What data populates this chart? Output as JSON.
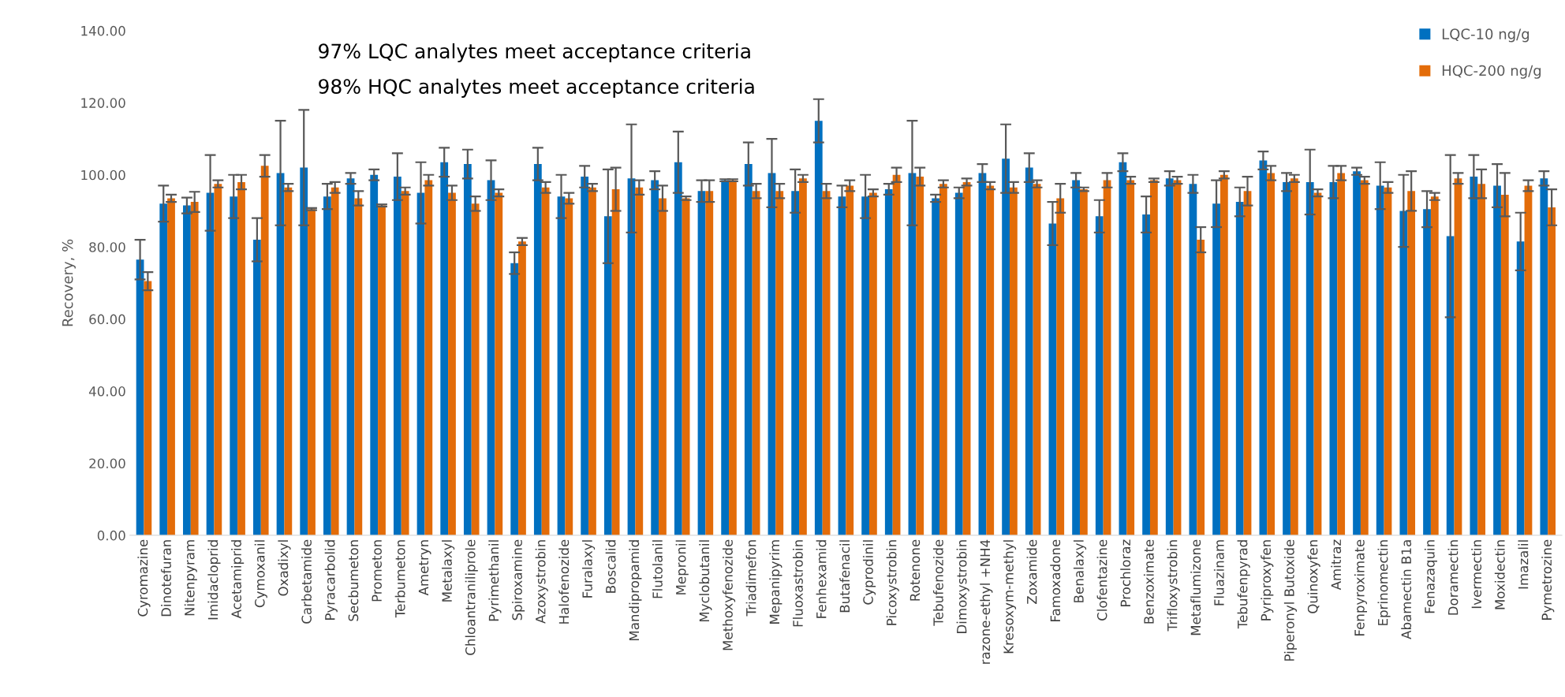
{
  "chart_data": {
    "type": "bar",
    "ylabel": "Recovery, %",
    "annotations": [
      "97% LQC analytes meet acceptance criteria",
      "98% HQC analytes meet acceptance criteria"
    ],
    "categories": [
      "Cyromazine",
      "Dinotefuran",
      "Nitenpyram",
      "Imidacloprid",
      "Acetamiprid",
      "Cymoxanil",
      "Oxadixyl",
      "Carbetamide",
      "Pyracarbolid",
      "Secbumeton",
      "Prometon",
      "Terbumeton",
      "Ametryn",
      "Metalaxyl",
      "Chloantraniliprole",
      "Pyrimethanil",
      "Spiroxamine",
      "Azoxystrobin",
      "Halofenozide",
      "Furalaxyl",
      "Boscalid",
      "Mandipropamid",
      "Flutolanil",
      "Mepronil",
      "Myclobutanil",
      "Methoxyfenozide",
      "Triadimefon",
      "Mepanipyrim",
      "Fluoxastrobin",
      "Fenhexamid",
      "Butafenacil",
      "Cyprodinil",
      "Picoxystrobin",
      "Rotenone",
      "Tebufenozide",
      "Dimoxystrobin",
      "razone-ethyl +NH4",
      "Kresoxym-methyl",
      "Zoxamide",
      "Famoxadone",
      "Benalaxyl",
      "Clofentazine",
      "Prochloraz",
      "Benzoximate",
      "Trifloxystrobin",
      "Metaflumizone",
      "Fluazinam",
      "Tebufenpyrad",
      "Pyriproxyfen",
      "Piperonyl Butoxide",
      "Quinoxyfen",
      "Amitraz",
      "Fenpyroximate",
      "Eprinomectin",
      "Abamectin B1a",
      "Fenazaquin",
      "Doramectin",
      "Ivermectin",
      "Moxidectin",
      "Imazalil",
      "Pymetrozine"
    ],
    "series": [
      {
        "name": "LQC-10 ng/g",
        "color": "#0070c0",
        "values": [
          76.5,
          92,
          91.5,
          95,
          94,
          82,
          100.5,
          102,
          94,
          99,
          100,
          99.5,
          95,
          103.5,
          103,
          98.5,
          75.5,
          103,
          94,
          99.5,
          88.5,
          99,
          98.5,
          103.5,
          95.5,
          98.5,
          103,
          100.5,
          95.5,
          115,
          94,
          94,
          96,
          100.5,
          93.5,
          95,
          100.5,
          104.5,
          102,
          86.5,
          98.5,
          88.5,
          103.5,
          89,
          99,
          97.5,
          92,
          92.5,
          104,
          98,
          98,
          98,
          101,
          97,
          90,
          90.5,
          83,
          99.5,
          97,
          81.5,
          99
        ],
        "errors": [
          5.5,
          5,
          2.2,
          10.5,
          6,
          6,
          14.5,
          16,
          3.5,
          1.5,
          1.5,
          6.5,
          8.5,
          4,
          4,
          5.5,
          3,
          4.5,
          6,
          3,
          13,
          15,
          2.5,
          8.5,
          3,
          0.3,
          6,
          9.5,
          6,
          6,
          3,
          6,
          1.5,
          14.5,
          1,
          1.5,
          2.5,
          9.5,
          4,
          6,
          2,
          4.5,
          2.5,
          5,
          2,
          2.5,
          6.5,
          4,
          2.5,
          2.5,
          9,
          4.5,
          1,
          6.5,
          10,
          5,
          22.5,
          6,
          6,
          8,
          2
        ]
      },
      {
        "name": "HQC-200 ng/g",
        "color": "#e36c09",
        "values": [
          70.5,
          93.5,
          92.5,
          97.5,
          98,
          102.5,
          96.5,
          90.5,
          96.5,
          93.5,
          91.5,
          95.5,
          98.5,
          95,
          92,
          95,
          81.5,
          96.5,
          93.5,
          96.5,
          96,
          96.5,
          93.5,
          93.5,
          95.5,
          98.5,
          95.5,
          95.5,
          99,
          95.5,
          97,
          95,
          100,
          99.5,
          97.5,
          98,
          97,
          96.5,
          97.5,
          93.5,
          96,
          98.5,
          98.5,
          98.5,
          98.5,
          82,
          100,
          95.5,
          100.5,
          99,
          95,
          100.5,
          98.5,
          96.5,
          95.5,
          94,
          99,
          97.5,
          94.5,
          97,
          91
        ],
        "errors": [
          2.5,
          1,
          2.8,
          1,
          2,
          3,
          1,
          0.3,
          1.5,
          2,
          0.3,
          1,
          1.5,
          2,
          2,
          1,
          1,
          1.5,
          1.5,
          1,
          6,
          2,
          3.5,
          0.5,
          3,
          0.3,
          2,
          2,
          1,
          2,
          1.5,
          1,
          2,
          2.5,
          1,
          1,
          1,
          1.5,
          1,
          4,
          0.5,
          2,
          1,
          0.5,
          1,
          3.5,
          1,
          4,
          2,
          1,
          1,
          2,
          1,
          1.5,
          5.5,
          1,
          1.5,
          4,
          6,
          1.5,
          5
        ]
      }
    ],
    "ylim": [
      0,
      140
    ],
    "yticks": [
      {
        "value": 0,
        "label": "0.00"
      },
      {
        "value": 20,
        "label": "20.00"
      },
      {
        "value": 40,
        "label": "40.00"
      },
      {
        "value": 60,
        "label": "60.00"
      },
      {
        "value": 80,
        "label": "80.00"
      },
      {
        "value": 100,
        "label": "100.00"
      },
      {
        "value": 120,
        "label": "120.00"
      },
      {
        "value": 140,
        "label": "140.00"
      }
    ],
    "grid": false,
    "legend": "top right"
  }
}
